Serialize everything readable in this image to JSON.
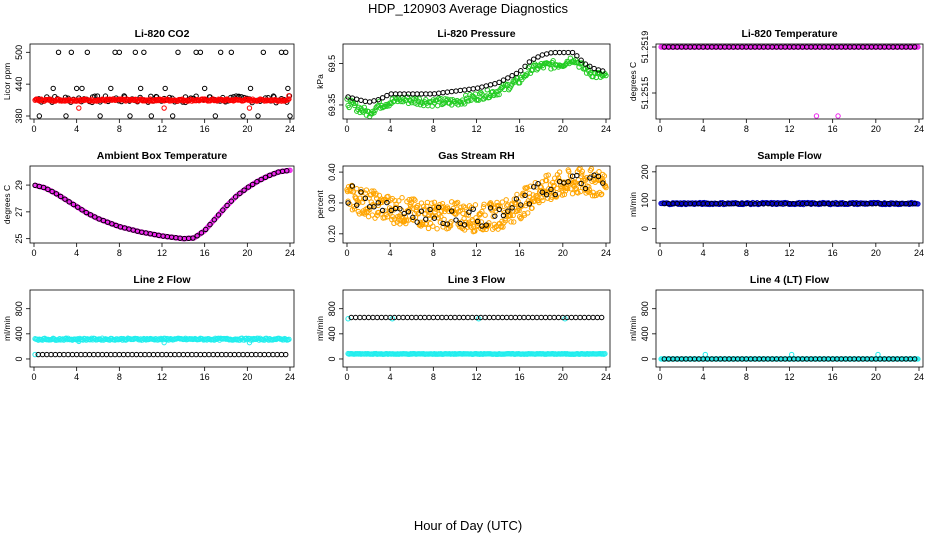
{
  "page": {
    "title": "HDP_120903  Average Diagnostics",
    "x_axis_title": "Hour of Day (UTC)"
  },
  "colors": {
    "black": "#000000",
    "red": "#ff0000",
    "green": "#22cc22",
    "magenta": "#ee22ee",
    "orange": "#ffa500",
    "blue": "#0000cc",
    "cyan": "#22eeee"
  },
  "chart_data": [
    {
      "type": "scatter",
      "title": "Li-820 CO2",
      "xlabel": "",
      "ylabel": "Licor ppm",
      "xlim": [
        0,
        24
      ],
      "ylim": [
        380,
        510
      ],
      "xticks": [
        0,
        4,
        8,
        12,
        16,
        20,
        24
      ],
      "yticks": [
        380,
        440,
        500
      ],
      "series": [
        {
          "color": "black",
          "marker": "circle",
          "band": [
            0.2,
            24,
            405,
            418,
            0.25
          ],
          "points": [
            [
              0.5,
              380
            ],
            [
              1.2,
              416
            ],
            [
              1.8,
              432
            ],
            [
              2.3,
              500
            ],
            [
              3,
              380
            ],
            [
              3.5,
              500
            ],
            [
              4,
              432
            ],
            [
              4.5,
              432
            ],
            [
              5,
              500
            ],
            [
              5.5,
              416
            ],
            [
              6.2,
              380
            ],
            [
              7.2,
              432
            ],
            [
              7.6,
              500
            ],
            [
              8,
              500
            ],
            [
              8.5,
              416
            ],
            [
              9,
              380
            ],
            [
              9.5,
              500
            ],
            [
              10,
              432
            ],
            [
              10.3,
              500
            ],
            [
              11,
              380
            ],
            [
              11.5,
              416
            ],
            [
              12.3,
              432
            ],
            [
              13,
              380
            ],
            [
              13.5,
              500
            ],
            [
              14.2,
              416
            ],
            [
              15.2,
              500
            ],
            [
              15.6,
              500
            ],
            [
              16,
              432
            ],
            [
              16.5,
              416
            ],
            [
              17,
              380
            ],
            [
              17.5,
              500
            ],
            [
              18.5,
              500
            ],
            [
              19.2,
              416
            ],
            [
              19.6,
              380
            ],
            [
              20.3,
              432
            ],
            [
              21,
              380
            ],
            [
              21.5,
              500
            ],
            [
              22.5,
              416
            ],
            [
              23.2,
              500
            ],
            [
              23.6,
              500
            ],
            [
              23.8,
              432
            ],
            [
              24,
              380
            ]
          ]
        },
        {
          "color": "red",
          "marker": "circle",
          "band": [
            0.1,
            23.9,
            408,
            412,
            0.1
          ],
          "points": [
            [
              0.3,
              412
            ],
            [
              4.2,
              395
            ],
            [
              12.2,
              395
            ],
            [
              20.2,
              395
            ],
            [
              23.9,
              418
            ]
          ]
        }
      ]
    },
    {
      "type": "scatter",
      "title": "Li-820 Pressure",
      "xlabel": "",
      "ylabel": "kPa",
      "xlim": [
        0,
        24
      ],
      "ylim": [
        69.31,
        69.56
      ],
      "xticks": [
        0,
        4,
        8,
        12,
        16,
        20,
        24
      ],
      "yticks": [
        69.35,
        69.5
      ],
      "series": [
        {
          "color": "green",
          "marker": "circle",
          "band_curve": [
            [
              0,
              69.36
            ],
            [
              1,
              69.34
            ],
            [
              2,
              69.32
            ],
            [
              3,
              69.35
            ],
            [
              5,
              69.37
            ],
            [
              8,
              69.36
            ],
            [
              10,
              69.36
            ],
            [
              12,
              69.38
            ],
            [
              14,
              69.4
            ],
            [
              16,
              69.44
            ],
            [
              17,
              69.48
            ],
            [
              18,
              69.49
            ],
            [
              20,
              69.5
            ],
            [
              21,
              69.52
            ],
            [
              22,
              69.48
            ],
            [
              23,
              69.46
            ],
            [
              24,
              69.45
            ]
          ],
          "spread": 0.015,
          "step": 0.1
        },
        {
          "color": "black",
          "marker": "circle",
          "curve": [
            [
              0,
              69.38
            ],
            [
              1,
              69.37
            ],
            [
              2,
              69.36
            ],
            [
              3,
              69.37
            ],
            [
              4,
              69.39
            ],
            [
              6,
              69.39
            ],
            [
              8,
              69.39
            ],
            [
              10,
              69.4
            ],
            [
              12,
              69.41
            ],
            [
              14,
              69.43
            ],
            [
              16,
              69.47
            ],
            [
              17,
              69.51
            ],
            [
              18,
              69.53
            ],
            [
              19,
              69.54
            ],
            [
              20,
              69.54
            ],
            [
              21,
              69.54
            ],
            [
              22,
              69.5
            ],
            [
              23,
              69.48
            ],
            [
              24,
              69.47
            ]
          ],
          "step": 0.4
        }
      ]
    },
    {
      "type": "scatter",
      "title": "Li-820 Temperature",
      "xlabel": "",
      "ylabel": "degrees C",
      "xlim": [
        0,
        24
      ],
      "ylim": [
        51.2513,
        51.2519
      ],
      "xticks": [
        0,
        4,
        8,
        12,
        16,
        20,
        24
      ],
      "yticks": [
        51.2515,
        51.2519
      ],
      "ytick_labels": [
        "51.2515",
        "51.2519"
      ],
      "series": [
        {
          "color": "magenta",
          "marker": "circle",
          "band": [
            0.1,
            23.9,
            51.2519,
            51.2519,
            0.1
          ],
          "points": [
            [
              14.5,
              51.2513
            ],
            [
              16.5,
              51.2513
            ]
          ]
        },
        {
          "color": "black",
          "marker": "circle",
          "band": [
            0.4,
            23.8,
            51.2519,
            51.2519,
            0.4
          ]
        }
      ]
    },
    {
      "type": "scatter",
      "title": "Ambient Box Temperature",
      "xlabel": "",
      "ylabel": "degrees C",
      "xlim": [
        0,
        24
      ],
      "ylim": [
        24.9,
        30.2
      ],
      "xticks": [
        0,
        4,
        8,
        12,
        16,
        20,
        24
      ],
      "yticks": [
        25,
        27,
        29
      ],
      "series": [
        {
          "color": "magenta",
          "marker": "circle",
          "curve": [
            [
              0,
              29.0
            ],
            [
              1,
              28.8
            ],
            [
              2,
              28.4
            ],
            [
              3,
              27.9
            ],
            [
              4,
              27.4
            ],
            [
              5,
              26.9
            ],
            [
              6,
              26.5
            ],
            [
              7,
              26.2
            ],
            [
              8,
              25.9
            ],
            [
              9,
              25.7
            ],
            [
              10,
              25.5
            ],
            [
              11,
              25.35
            ],
            [
              12,
              25.2
            ],
            [
              13,
              25.1
            ],
            [
              14,
              25.0
            ],
            [
              15,
              25.05
            ],
            [
              16,
              25.6
            ],
            [
              17,
              26.5
            ],
            [
              18,
              27.4
            ],
            [
              19,
              28.2
            ],
            [
              20,
              28.8
            ],
            [
              21,
              29.3
            ],
            [
              22,
              29.7
            ],
            [
              23,
              30.0
            ],
            [
              24,
              30.1
            ]
          ],
          "step": 0.1
        },
        {
          "color": "black",
          "marker": "circle",
          "curve": [
            [
              0,
              29.0
            ],
            [
              1,
              28.8
            ],
            [
              2,
              28.4
            ],
            [
              3,
              27.9
            ],
            [
              4,
              27.4
            ],
            [
              5,
              26.9
            ],
            [
              6,
              26.5
            ],
            [
              7,
              26.2
            ],
            [
              8,
              25.9
            ],
            [
              9,
              25.7
            ],
            [
              10,
              25.5
            ],
            [
              11,
              25.35
            ],
            [
              12,
              25.2
            ],
            [
              13,
              25.1
            ],
            [
              14,
              25.0
            ],
            [
              15,
              25.05
            ],
            [
              16,
              25.6
            ],
            [
              17,
              26.5
            ],
            [
              18,
              27.4
            ],
            [
              19,
              28.2
            ],
            [
              20,
              28.8
            ],
            [
              21,
              29.3
            ],
            [
              22,
              29.7
            ],
            [
              23,
              30.0
            ],
            [
              24,
              30.1
            ]
          ],
          "step": 0.4
        }
      ]
    },
    {
      "type": "scatter",
      "title": "Gas Stream RH",
      "xlabel": "",
      "ylabel": "percent",
      "xlim": [
        0,
        24
      ],
      "ylim": [
        0.18,
        0.41
      ],
      "xticks": [
        0,
        4,
        8,
        12,
        16,
        20,
        24
      ],
      "yticks": [
        0.2,
        0.3,
        0.4
      ],
      "ytick_labels": [
        "0.20",
        "0.30",
        "0.40"
      ],
      "series": [
        {
          "color": "orange",
          "marker": "circle",
          "band_curve": [
            [
              0,
              0.32
            ],
            [
              2,
              0.3
            ],
            [
              4,
              0.28
            ],
            [
              6,
              0.27
            ],
            [
              8,
              0.26
            ],
            [
              10,
              0.26
            ],
            [
              12,
              0.25
            ],
            [
              14,
              0.26
            ],
            [
              16,
              0.29
            ],
            [
              17,
              0.32
            ],
            [
              18,
              0.34
            ],
            [
              20,
              0.36
            ],
            [
              22,
              0.37
            ],
            [
              24,
              0.36
            ]
          ],
          "spread": 0.045,
          "step": 0.05
        },
        {
          "color": "black",
          "marker": "circle",
          "curve": [
            [
              0,
              0.33
            ],
            [
              2,
              0.31
            ],
            [
              4,
              0.29
            ],
            [
              6,
              0.27
            ],
            [
              8,
              0.26
            ],
            [
              10,
              0.26
            ],
            [
              12,
              0.25
            ],
            [
              14,
              0.26
            ],
            [
              16,
              0.29
            ],
            [
              17,
              0.32
            ],
            [
              18,
              0.34
            ],
            [
              20,
              0.36
            ],
            [
              22,
              0.37
            ],
            [
              24,
              0.36
            ]
          ],
          "spread": 0.03,
          "step": 0.4
        }
      ]
    },
    {
      "type": "scatter",
      "title": "Sample Flow",
      "xlabel": "",
      "ylabel": "ml/min",
      "xlim": [
        0,
        24
      ],
      "ylim": [
        -40,
        210
      ],
      "xticks": [
        0,
        4,
        8,
        12,
        16,
        20,
        24
      ],
      "yticks": [
        0,
        100,
        200
      ],
      "series": [
        {
          "color": "blue",
          "marker": "circle",
          "band": [
            0.1,
            23.9,
            85,
            92,
            0.1
          ]
        },
        {
          "color": "black",
          "marker": "circle",
          "band": [
            0.4,
            23.8,
            88,
            88,
            0.4
          ]
        }
      ]
    },
    {
      "type": "scatter",
      "title": "Line 2 Flow",
      "xlabel": "",
      "ylabel": "ml/min",
      "xlim": [
        0,
        24
      ],
      "ylim": [
        -80,
        1050
      ],
      "xticks": [
        0,
        4,
        8,
        12,
        16,
        20,
        24
      ],
      "yticks": [
        0,
        400,
        800
      ],
      "series": [
        {
          "color": "cyan",
          "marker": "circle",
          "band": [
            0.1,
            23.9,
            300,
            330,
            0.1
          ],
          "points": [
            [
              0.1,
              70
            ],
            [
              4.2,
              280
            ],
            [
              12.2,
              260
            ],
            [
              20.2,
              260
            ]
          ]
        },
        {
          "color": "black",
          "marker": "circle",
          "band": [
            0.4,
            23.8,
            70,
            70,
            0.4
          ]
        }
      ]
    },
    {
      "type": "scatter",
      "title": "Line 3 Flow",
      "xlabel": "",
      "ylabel": "ml/min",
      "xlim": [
        0,
        24
      ],
      "ylim": [
        -80,
        1050
      ],
      "xticks": [
        0,
        4,
        8,
        12,
        16,
        20,
        24
      ],
      "yticks": [
        0,
        400,
        800
      ],
      "series": [
        {
          "color": "cyan",
          "marker": "circle",
          "band": [
            0.1,
            23.9,
            75,
            85,
            0.1
          ],
          "points": [
            [
              0.1,
              640
            ],
            [
              4.2,
              640
            ],
            [
              12.2,
              640
            ],
            [
              20.2,
              640
            ]
          ]
        },
        {
          "color": "black",
          "marker": "circle",
          "band": [
            0.4,
            23.8,
            660,
            660,
            0.4
          ]
        }
      ]
    },
    {
      "type": "scatter",
      "title": "Line 4 (LT) Flow",
      "xlabel": "",
      "ylabel": "ml/min",
      "xlim": [
        0,
        24
      ],
      "ylim": [
        -80,
        1050
      ],
      "xticks": [
        0,
        4,
        8,
        12,
        16,
        20,
        24
      ],
      "yticks": [
        0,
        400,
        800
      ],
      "series": [
        {
          "color": "cyan",
          "marker": "circle",
          "band": [
            0.1,
            23.9,
            0,
            0,
            0.1
          ],
          "points": [
            [
              4.2,
              70
            ],
            [
              12.2,
              70
            ],
            [
              20.2,
              70
            ]
          ]
        },
        {
          "color": "black",
          "marker": "circle",
          "band": [
            0.4,
            23.8,
            0,
            0,
            0.4
          ]
        }
      ]
    }
  ]
}
